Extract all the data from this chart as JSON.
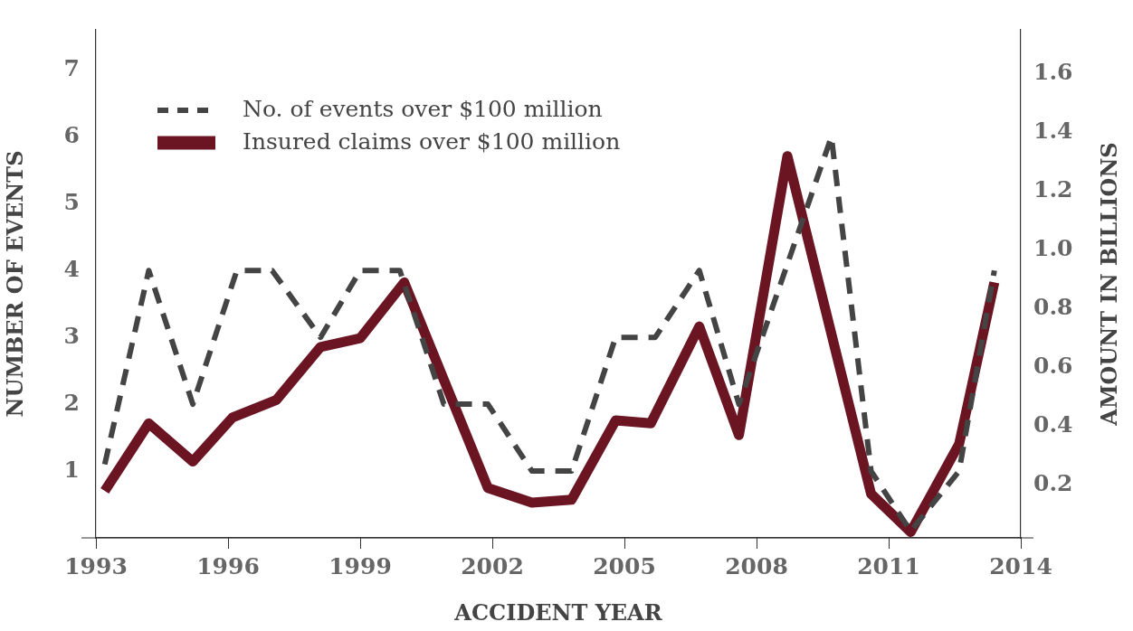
{
  "chart_data": {
    "type": "line",
    "xlabel": "ACCIDENT YEAR",
    "ylabel": "NUMBER OF EVENTS",
    "y2label": "AMOUNT IN BILLIONS",
    "xlim": [
      1993,
      2014
    ],
    "xticks": [
      1993,
      1996,
      1999,
      2002,
      2005,
      2008,
      2011,
      2014
    ],
    "ylim": [
      0,
      7.6
    ],
    "yticks": [
      1,
      2,
      3,
      4,
      5,
      6,
      7
    ],
    "y2lim": [
      0.02,
      1.75
    ],
    "y2ticks": [
      0.2,
      0.4,
      0.6,
      0.8,
      {
        "value": 1,
        "label": "1.0"
      },
      1.2,
      1.4,
      1.6
    ],
    "legend": "top left",
    "grid": false,
    "marker": "none",
    "series": [
      {
        "name": "No. of events over $100 million",
        "color": "#444444",
        "line_style": "dashed",
        "x": [
          1993.2,
          1994.2,
          1995.2,
          1996.2,
          1997.0,
          1998.1,
          1999.0,
          1999.9,
          2000.9,
          2001.9,
          2002.9,
          2003.8,
          2004.8,
          2005.7,
          2006.7,
          2007.6,
          2009.7,
          2010.6,
          2011.5,
          2012.6,
          2013.4
        ],
        "values": [
          1.1,
          4,
          2,
          4,
          4,
          3,
          4,
          4,
          2,
          2,
          1,
          1,
          3,
          3,
          4,
          2,
          6,
          1,
          0.1,
          1,
          4
        ]
      },
      {
        "name": "Insured claims over $100 million",
        "color": "#6b1523",
        "line_style": "solid",
        "axis": "y2",
        "x": [
          1993.2,
          1994.2,
          1995.2,
          1996.1,
          1997.1,
          1998.1,
          1999.0,
          2000.0,
          2001.9,
          2002.9,
          2003.8,
          2004.8,
          2005.6,
          2006.7,
          2007.6,
          2008.7,
          2010.6,
          2011.5,
          2012.6,
          2013.4
        ],
        "values": [
          0.18,
          0.41,
          0.28,
          0.43,
          0.49,
          0.67,
          0.7,
          0.89,
          0.19,
          0.14,
          0.15,
          0.42,
          0.41,
          0.74,
          0.37,
          1.32,
          0.17,
          0.04,
          0.34,
          0.89
        ]
      }
    ]
  }
}
